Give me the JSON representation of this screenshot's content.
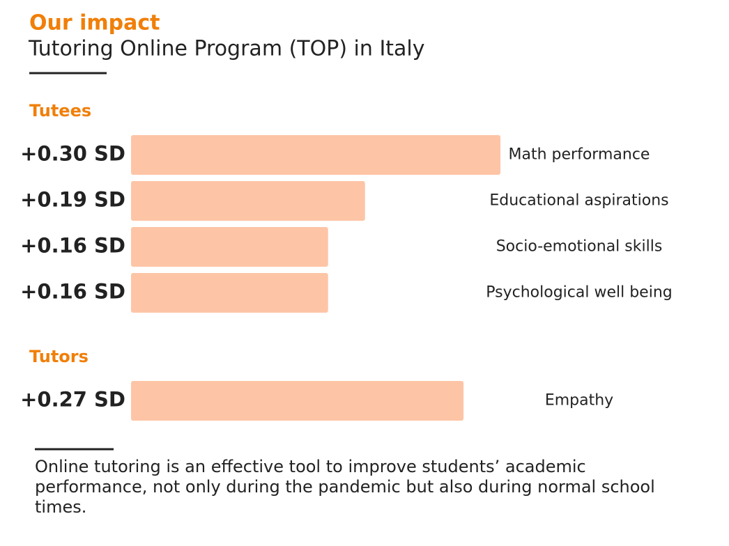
{
  "header": {
    "title": "Our impact",
    "subtitle": "Tutoring Online Program (TOP) in Italy"
  },
  "chart_data": [
    {
      "type": "bar",
      "orientation": "horizontal",
      "title": "Tutees",
      "categories": [
        "Math performance",
        "Educational aspirations",
        "Socio-emotional skills",
        "Psychological well being"
      ],
      "values": [
        0.3,
        0.19,
        0.16,
        0.16
      ],
      "value_labels": [
        "+0.30 SD",
        "+0.19 SD",
        "+0.16 SD",
        "+0.16 SD"
      ],
      "color": "#fdc5a6"
    },
    {
      "type": "bar",
      "orientation": "horizontal",
      "title": "Tutors",
      "categories": [
        "Empathy"
      ],
      "values": [
        0.27
      ],
      "value_labels": [
        "+0.27 SD"
      ],
      "color": "#fdc5a6"
    }
  ],
  "note": "Online tutoring is an effective tool to improve students’ academic performance, not only during the pandemic but also during normal school times."
}
